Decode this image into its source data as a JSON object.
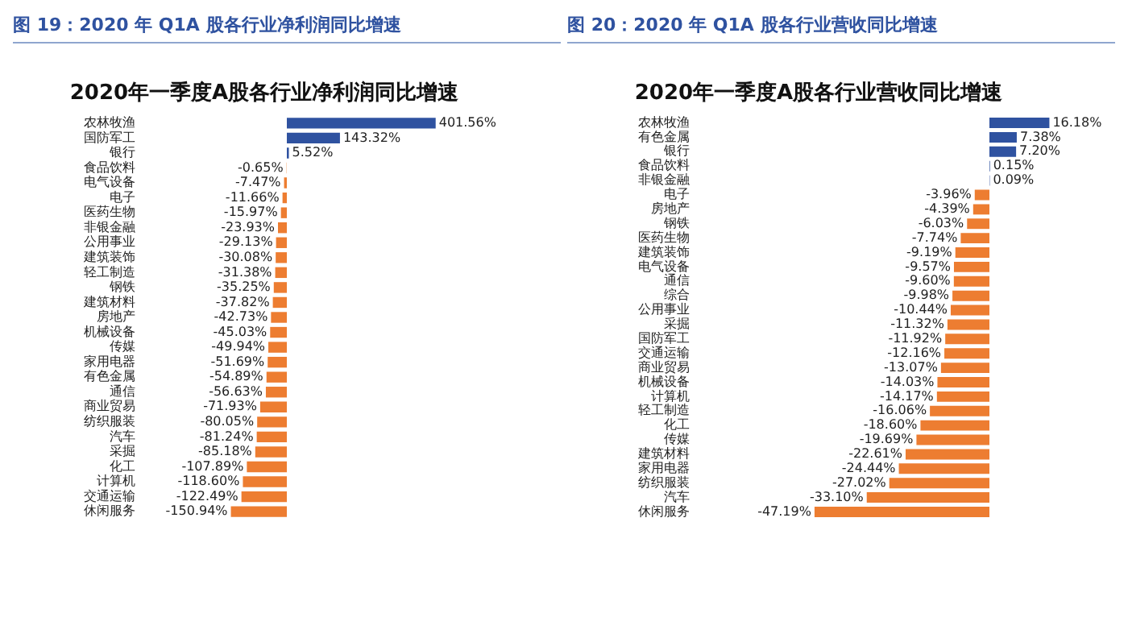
{
  "chart_data": [
    {
      "type": "bar",
      "orientation": "horizontal",
      "title": "图 19：2020 年 Q1A 股各行业净利润同比增速",
      "subtitle": "2020年一季度A股各行业净利润同比增速",
      "tick_labels": "y",
      "categories": [
        "农林牧渔",
        "国防军工",
        "银行",
        "食品饮料",
        "电气设备",
        "电子",
        "医药生物",
        "非银金融",
        "公用事业",
        "建筑装饰",
        "轻工制造",
        "钢铁",
        "建筑材料",
        "房地产",
        "机械设备",
        "传媒",
        "家用电器",
        "有色金属",
        "通信",
        "商业贸易",
        "纺织服装",
        "汽车",
        "采掘",
        "化工",
        "计算机",
        "交通运输",
        "休闲服务"
      ],
      "values": [
        401.56,
        143.32,
        5.52,
        -0.65,
        -7.47,
        -11.66,
        -15.97,
        -23.93,
        -29.13,
        -30.08,
        -31.38,
        -35.25,
        -37.82,
        -42.73,
        -45.03,
        -49.94,
        -51.69,
        -54.89,
        -56.63,
        -71.93,
        -80.05,
        -81.24,
        -85.18,
        -107.89,
        -118.6,
        -122.49,
        -150.94
      ],
      "value_labels": [
        "401.56%",
        "143.32%",
        "5.52%",
        "-0.65%",
        "-7.47%",
        "-11.66%",
        "-15.97%",
        "-23.93%",
        "-29.13%",
        "-30.08%",
        "-31.38%",
        "-35.25%",
        "-37.82%",
        "-42.73%",
        "-45.03%",
        "-49.94%",
        "-51.69%",
        "-54.89%",
        "-56.63%",
        "-71.93%",
        "-80.05%",
        "-81.24%",
        "-85.18%",
        "-107.89%",
        "-118.60%",
        "-122.49%",
        "-150.94%"
      ],
      "colors": [
        "#2f52a0",
        "#2f52a0",
        "#2f52a0",
        "#ed7d31",
        "#ed7d31",
        "#ed7d31",
        "#ed7d31",
        "#ed7d31",
        "#ed7d31",
        "#ed7d31",
        "#ed7d31",
        "#ed7d31",
        "#ed7d31",
        "#ed7d31",
        "#ed7d31",
        "#ed7d31",
        "#ed7d31",
        "#ed7d31",
        "#ed7d31",
        "#ed7d31",
        "#ed7d31",
        "#ed7d31",
        "#ed7d31",
        "#ed7d31",
        "#ed7d31",
        "#ed7d31",
        "#ed7d31"
      ]
    },
    {
      "type": "bar",
      "orientation": "horizontal",
      "title": "图 20：2020 年 Q1A 股各行业营收同比增速",
      "subtitle": "2020年一季度A股各行业营收同比增速",
      "tick_labels": "y",
      "categories": [
        "农林牧渔",
        "有色金属",
        "银行",
        "食品饮料",
        "非银金融",
        "电子",
        "房地产",
        "钢铁",
        "医药生物",
        "建筑装饰",
        "电气设备",
        "通信",
        "综合",
        "公用事业",
        "采掘",
        "国防军工",
        "交通运输",
        "商业贸易",
        "机械设备",
        "计算机",
        "轻工制造",
        "化工",
        "传媒",
        "建筑材料",
        "家用电器",
        "纺织服装",
        "汽车",
        "休闲服务"
      ],
      "values": [
        16.18,
        7.38,
        7.2,
        0.15,
        0.09,
        -3.96,
        -4.39,
        -6.03,
        -7.74,
        -9.19,
        -9.57,
        -9.6,
        -9.98,
        -10.44,
        -11.32,
        -11.92,
        -12.16,
        -13.07,
        -14.03,
        -14.17,
        -16.06,
        -18.6,
        -19.69,
        -22.61,
        -24.44,
        -27.02,
        -33.1,
        -47.19
      ],
      "value_labels": [
        "16.18%",
        "7.38%",
        "7.20%",
        "0.15%",
        "0.09%",
        "-3.96%",
        "-4.39%",
        "-6.03%",
        "-7.74%",
        "-9.19%",
        "-9.57%",
        "-9.60%",
        "-9.98%",
        "-10.44%",
        "-11.32%",
        "-11.92%",
        "-12.16%",
        "-13.07%",
        "-14.03%",
        "-14.17%",
        "-16.06%",
        "-18.60%",
        "-19.69%",
        "-22.61%",
        "-24.44%",
        "-27.02%",
        "-33.10%",
        "-47.19%"
      ],
      "colors": [
        "#2f52a0",
        "#2f52a0",
        "#2f52a0",
        "#2f52a0",
        "#2f52a0",
        "#ed7d31",
        "#ed7d31",
        "#ed7d31",
        "#ed7d31",
        "#ed7d31",
        "#ed7d31",
        "#ed7d31",
        "#ed7d31",
        "#ed7d31",
        "#ed7d31",
        "#ed7d31",
        "#ed7d31",
        "#ed7d31",
        "#ed7d31",
        "#ed7d31",
        "#ed7d31",
        "#ed7d31",
        "#ed7d31",
        "#ed7d31",
        "#ed7d31",
        "#ed7d31",
        "#ed7d31",
        "#ed7d31"
      ]
    }
  ]
}
